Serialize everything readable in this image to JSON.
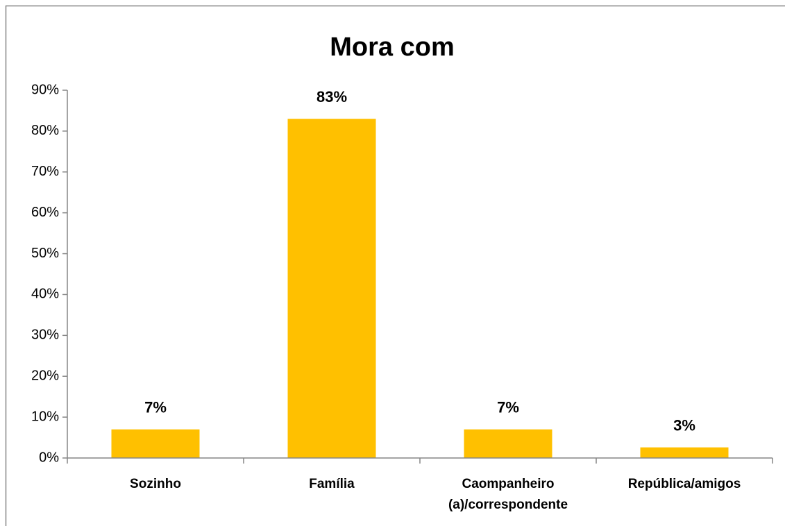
{
  "chart_data": {
    "type": "bar",
    "title": "Mora com",
    "categories": [
      "Sozinho",
      "Família",
      "Caompanheiro (a)/correspondente",
      "República/amigos"
    ],
    "values": [
      7,
      83,
      7,
      2.6
    ],
    "value_labels": [
      "7%",
      "83%",
      "7%",
      "3%"
    ],
    "color": "#ffc000",
    "ylim": [
      0,
      90
    ],
    "yticks": [
      {
        "value": 0,
        "label": "0%"
      },
      {
        "value": 10,
        "label": "10%"
      },
      {
        "value": 20,
        "label": "20%"
      },
      {
        "value": 30,
        "label": "30%"
      },
      {
        "value": 40,
        "label": "40%"
      },
      {
        "value": 50,
        "label": "50%"
      },
      {
        "value": 60,
        "label": "60%"
      },
      {
        "value": 70,
        "label": "70%"
      },
      {
        "value": 80,
        "label": "80%"
      },
      {
        "value": 90,
        "label": "90%"
      }
    ],
    "grid": false
  }
}
